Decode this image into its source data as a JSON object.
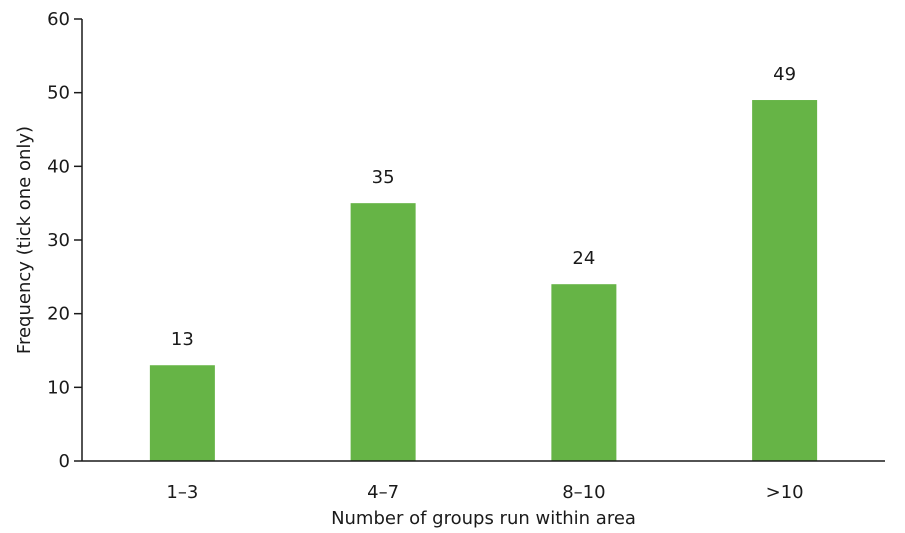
{
  "chart_data": {
    "type": "bar",
    "categories": [
      "1–3",
      "4–7",
      "8–10",
      ">10"
    ],
    "values": [
      13,
      35,
      24,
      49
    ],
    "ylim": [
      0,
      60
    ],
    "yticks": [
      0,
      10,
      20,
      30,
      40,
      50,
      60
    ],
    "xlabel": "Number of groups run within area",
    "ylabel": "Frequency (tick one only)",
    "grid": false,
    "legend": "none",
    "bar_color": "#66b446",
    "axis_color": "#1a1a1a"
  }
}
